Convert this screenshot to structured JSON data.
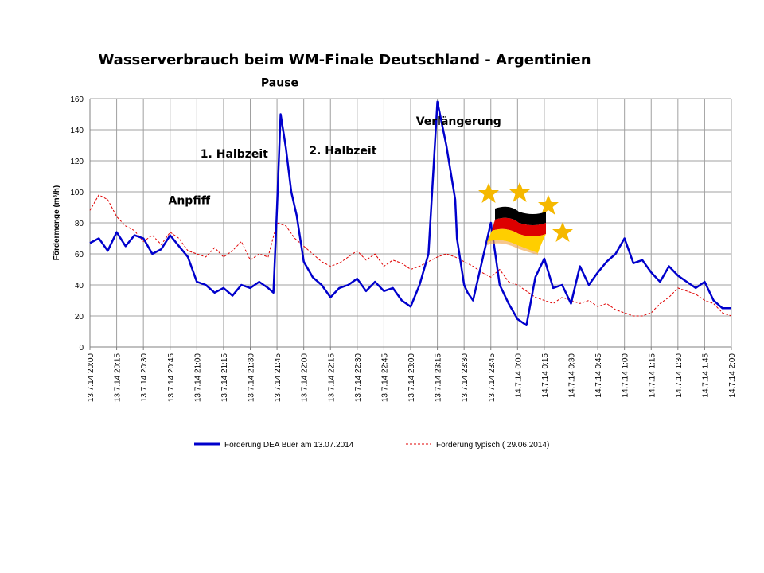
{
  "chart_data": {
    "type": "line",
    "title": "Wasserverbrauch beim WM-Finale Deutschland - Argentinien",
    "xlabel": "",
    "ylabel": "Fördermenge (m³/h)",
    "ylim": [
      0,
      160
    ],
    "y_ticks": [
      0,
      20,
      40,
      60,
      80,
      100,
      120,
      140,
      160
    ],
    "grid": true,
    "x_ticks": [
      "13.7.14 20:00",
      "13.7.14 20:15",
      "13.7.14 20:30",
      "13.7.14 20:45",
      "13.7.14 21:00",
      "13.7.14 21:15",
      "13.7.14 21:30",
      "13.7.14 21:45",
      "13.7.14 22:00",
      "13.7.14 22:15",
      "13.7.14 22:30",
      "13.7.14 22:45",
      "13.7.14 23:00",
      "13.7.14 23:15",
      "13.7.14 23:30",
      "13.7.14 23:45",
      "14.7.14 0:00",
      "14.7.14 0:15",
      "14.7.14 0:30",
      "14.7.14 0:45",
      "14.7.14 1:00",
      "14.7.14 1:15",
      "14.7.14 1:30",
      "14.7.14 1:45",
      "14.7.14 2:00"
    ],
    "legend_position": "bottom",
    "series": [
      {
        "name": "Förderung DEA Buer am 13.07.2014",
        "color": "#0000cc",
        "style": "solid",
        "x_minutes": [
          0,
          5,
          10,
          15,
          20,
          25,
          30,
          35,
          40,
          45,
          50,
          55,
          60,
          65,
          70,
          75,
          80,
          85,
          90,
          95,
          100,
          103,
          105,
          107,
          110,
          113,
          116,
          120,
          125,
          130,
          135,
          140,
          145,
          150,
          155,
          160,
          165,
          170,
          175,
          180,
          185,
          190,
          195,
          200,
          205,
          206,
          208,
          210,
          212,
          215,
          220,
          225,
          230,
          235,
          240,
          245,
          250,
          255,
          260,
          265,
          270,
          275,
          280,
          285,
          290,
          295,
          300,
          305,
          310,
          315,
          320,
          325,
          330,
          335,
          340,
          345,
          350,
          355,
          360
        ],
        "values": [
          67,
          70,
          62,
          74,
          65,
          72,
          70,
          60,
          63,
          72,
          65,
          58,
          42,
          40,
          35,
          38,
          33,
          40,
          38,
          42,
          38,
          35,
          90,
          150,
          128,
          100,
          85,
          55,
          45,
          40,
          32,
          38,
          40,
          44,
          36,
          42,
          36,
          38,
          30,
          26,
          40,
          60,
          158,
          130,
          95,
          70,
          55,
          40,
          35,
          30,
          55,
          80,
          40,
          28,
          18,
          14,
          45,
          57,
          38,
          40,
          28,
          52,
          40,
          48,
          55,
          60,
          70,
          54,
          56,
          48,
          42,
          52,
          46,
          42,
          38,
          42,
          30,
          25,
          25
        ]
      },
      {
        "name": "Förderung typisch ( 29.06.2014)",
        "color": "#e00000",
        "style": "dashed",
        "x_minutes": [
          0,
          5,
          10,
          15,
          20,
          25,
          30,
          35,
          40,
          45,
          50,
          55,
          60,
          65,
          70,
          75,
          80,
          85,
          90,
          95,
          100,
          105,
          110,
          115,
          120,
          125,
          130,
          135,
          140,
          145,
          150,
          155,
          160,
          165,
          170,
          175,
          180,
          185,
          190,
          195,
          200,
          205,
          210,
          215,
          220,
          225,
          230,
          235,
          240,
          245,
          250,
          255,
          260,
          265,
          270,
          275,
          280,
          285,
          290,
          295,
          300,
          305,
          310,
          315,
          320,
          325,
          330,
          335,
          340,
          345,
          350,
          355,
          360
        ],
        "values": [
          88,
          98,
          95,
          84,
          78,
          75,
          68,
          72,
          66,
          74,
          70,
          62,
          60,
          58,
          64,
          58,
          62,
          68,
          56,
          60,
          58,
          80,
          78,
          70,
          65,
          60,
          55,
          52,
          54,
          58,
          62,
          56,
          60,
          52,
          56,
          54,
          50,
          52,
          55,
          58,
          60,
          58,
          55,
          52,
          48,
          45,
          50,
          42,
          40,
          36,
          32,
          30,
          28,
          32,
          30,
          28,
          30,
          26,
          28,
          24,
          22,
          20,
          20,
          22,
          28,
          32,
          38,
          36,
          34,
          30,
          28,
          22,
          20
        ]
      }
    ],
    "annotations": [
      {
        "text": "Anpfiff",
        "x_minutes": 44,
        "y": 92
      },
      {
        "text": "1. Halbzeit",
        "x_minutes": 62,
        "y": 122
      },
      {
        "text": "Pause",
        "x_minutes": 96,
        "y": 168
      },
      {
        "text": "2. Halbzeit",
        "x_minutes": 123,
        "y": 124
      },
      {
        "text": "Verlängerung",
        "x_minutes": 183,
        "y": 143
      }
    ]
  },
  "decorations": {
    "star_icon": "star-icon",
    "star_color": "#f5b800",
    "flag_icon": "german-flag-icon",
    "flag_colors": [
      "#000000",
      "#dd0000",
      "#ffce00"
    ]
  }
}
